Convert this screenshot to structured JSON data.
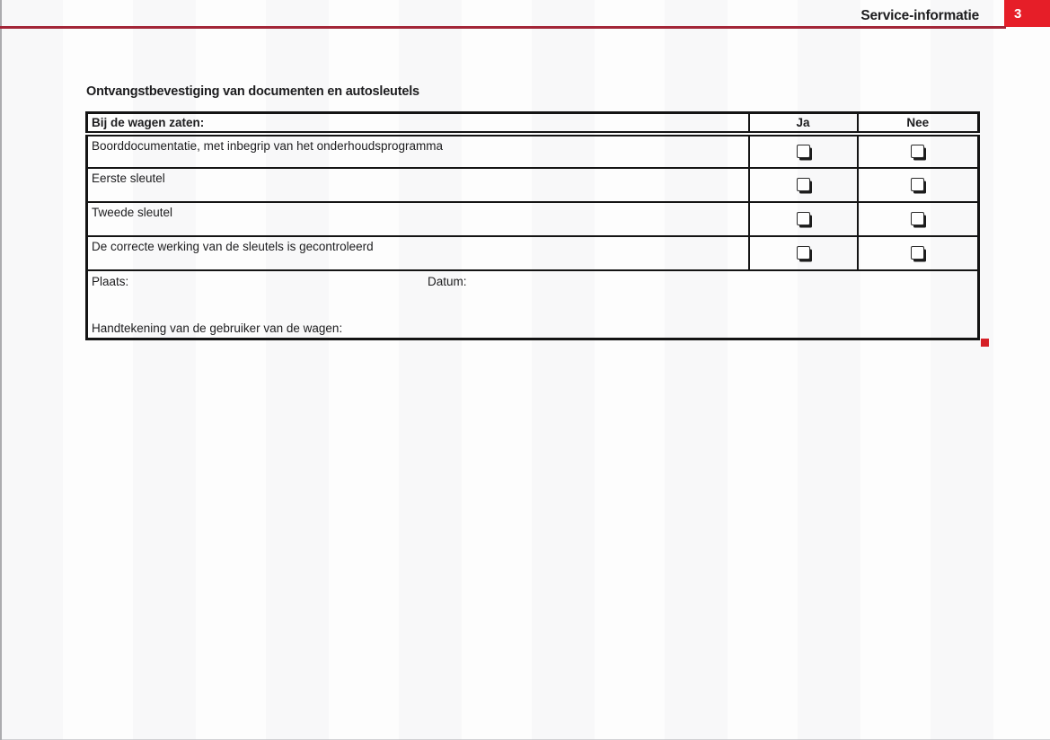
{
  "header": {
    "title": "Service-informatie",
    "chapter_number": "3"
  },
  "colors": {
    "badge_red": "#e61e28",
    "rule_dark_red": "#a32638",
    "marker_red": "#d51f26",
    "border_black": "#141414"
  },
  "section_heading": "Ontvangstbevestiging van documenten en autosleutels",
  "table": {
    "header": {
      "description": "Bij de wagen zaten:",
      "yes": "Ja",
      "no": "Nee"
    },
    "rows": [
      {
        "label": "Boorddocumentatie, met inbegrip van het onderhoudsprogramma"
      },
      {
        "label": "Eerste sleutel"
      },
      {
        "label": "Tweede sleutel"
      },
      {
        "label": "De correcte werking van de sleutels is gecontroleerd"
      }
    ],
    "footer": {
      "place_label": "Plaats:",
      "date_label": "Datum:",
      "signature_label": "Handtekening van de gebruiker van de wagen:"
    }
  }
}
